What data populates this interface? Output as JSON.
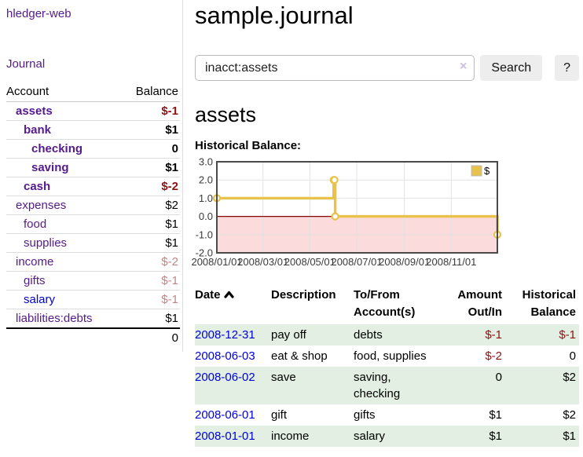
{
  "app": {
    "brand": "hledger-web",
    "nav_journal": "Journal"
  },
  "colors": {
    "link_purple": "#551a8b",
    "link_blue": "#0000dd",
    "negative_strong": "#8d1212",
    "negative_soft": "#c08484",
    "row_stripe_green": "#e2efe2",
    "chart_gold": "#e8c24a",
    "chart_negative_region_pink": "#fbdbdb",
    "chart_zero_line_red": "#8b0000"
  },
  "sidebar": {
    "accounts_header": {
      "account": "Account",
      "balance": "Balance"
    },
    "accounts": [
      {
        "name": "assets",
        "balance": "$-1",
        "depth": 1,
        "bold": true,
        "negative": "strong",
        "link": "purple"
      },
      {
        "name": "bank",
        "balance": "$1",
        "depth": 2,
        "bold": true,
        "negative": "none",
        "link": "purple"
      },
      {
        "name": "checking",
        "balance": "0",
        "depth": 3,
        "bold": true,
        "negative": "none",
        "link": "purple"
      },
      {
        "name": "saving",
        "balance": "$1",
        "depth": 3,
        "bold": true,
        "negative": "none",
        "link": "purple"
      },
      {
        "name": "cash",
        "balance": "$-2",
        "depth": 2,
        "bold": true,
        "negative": "strong",
        "link": "purple"
      },
      {
        "name": "expenses",
        "balance": "$2",
        "depth": 1,
        "bold": false,
        "negative": "none",
        "link": "purple"
      },
      {
        "name": "food",
        "balance": "$1",
        "depth": 2,
        "bold": false,
        "negative": "none",
        "link": "purple"
      },
      {
        "name": "supplies",
        "balance": "$1",
        "depth": 2,
        "bold": false,
        "negative": "none",
        "link": "purple"
      },
      {
        "name": "income",
        "balance": "$-2",
        "depth": 1,
        "bold": false,
        "negative": "soft",
        "link": "purple"
      },
      {
        "name": "gifts",
        "balance": "$-1",
        "depth": 2,
        "bold": false,
        "negative": "soft",
        "link": "purple"
      },
      {
        "name": "salary",
        "balance": "$-1",
        "depth": 2,
        "bold": false,
        "negative": "soft",
        "link": "blue"
      },
      {
        "name": "liabilities:debts",
        "balance": "$1",
        "depth": 1,
        "bold": false,
        "negative": "none",
        "link": "purple"
      }
    ],
    "total": "0"
  },
  "header": {
    "title": "sample.journal"
  },
  "search": {
    "value": "inacct:assets",
    "clear_icon": "×",
    "button": "Search",
    "help_button": "?"
  },
  "account_page": {
    "heading": "assets",
    "chart_label": "Historical Balance:"
  },
  "chart_data": {
    "type": "line",
    "style": "step",
    "title": "Historical Balance:",
    "legend": {
      "label": "$",
      "position": "top-right"
    },
    "x_domain_days": [
      0,
      365
    ],
    "ylim": [
      -2,
      3
    ],
    "grid": true,
    "x_ticks": [
      {
        "day": 0,
        "label": "2008/01/01"
      },
      {
        "day": 60,
        "label": "2008/03/01"
      },
      {
        "day": 121,
        "label": "2008/05/01"
      },
      {
        "day": 182,
        "label": "2008/07/01"
      },
      {
        "day": 244,
        "label": "2008/09/01"
      },
      {
        "day": 305,
        "label": "2008/11/01"
      }
    ],
    "y_ticks": [
      {
        "value": 3,
        "label": "3.0"
      },
      {
        "value": 2,
        "label": "2.0"
      },
      {
        "value": 1,
        "label": "1.0"
      },
      {
        "value": 0,
        "label": "0.0"
      },
      {
        "value": -1,
        "label": "-1.0"
      },
      {
        "value": -2,
        "label": "-2.0"
      }
    ],
    "points": [
      {
        "date": "2008-01-01",
        "day": 0,
        "value": 1
      },
      {
        "date": "2008-06-01",
        "day": 152,
        "value": 2
      },
      {
        "date": "2008-06-02",
        "day": 153,
        "value": 2
      },
      {
        "date": "2008-06-03",
        "day": 154,
        "value": 0
      },
      {
        "date": "2008-12-31",
        "day": 365,
        "value": -1
      }
    ]
  },
  "register_table": {
    "headers": {
      "date": "Date",
      "description": "Description",
      "accounts": "To/From Account(s)",
      "amount": "Amount Out/In",
      "balance": "Historical Balance"
    },
    "sort": {
      "column": "date",
      "direction": "asc"
    },
    "rows": [
      {
        "date": "2008-12-31",
        "description": "pay off",
        "accounts": "debts",
        "amount": "$-1",
        "amount_negative": true,
        "balance": "$-1",
        "balance_negative": true
      },
      {
        "date": "2008-06-03",
        "description": "eat & shop",
        "accounts": "food, supplies",
        "amount": "$-2",
        "amount_negative": true,
        "balance": "0",
        "balance_negative": false
      },
      {
        "date": "2008-06-02",
        "description": "save",
        "accounts": "saving, checking",
        "amount": "0",
        "amount_negative": false,
        "balance": "$2",
        "balance_negative": false
      },
      {
        "date": "2008-06-01",
        "description": "gift",
        "accounts": "gifts",
        "amount": "$1",
        "amount_negative": false,
        "balance": "$2",
        "balance_negative": false
      },
      {
        "date": "2008-01-01",
        "description": "income",
        "accounts": "salary",
        "amount": "$1",
        "amount_negative": false,
        "balance": "$1",
        "balance_negative": false
      }
    ]
  }
}
